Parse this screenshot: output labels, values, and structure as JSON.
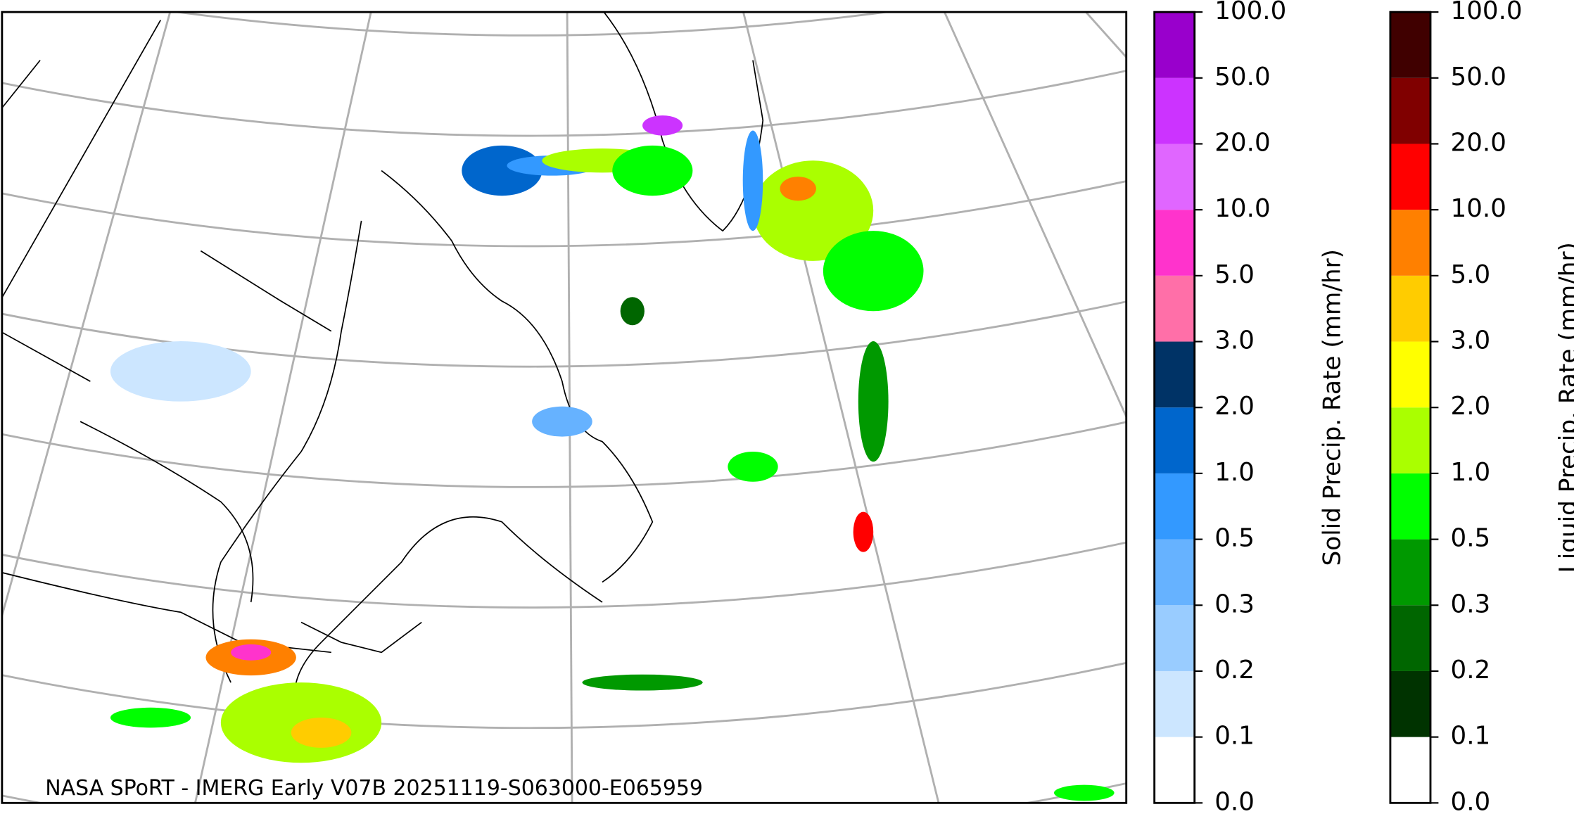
{
  "map": {
    "caption": "NASA SPoRT - IMERG Early V07B 20251119-S063000-E065959"
  },
  "colorbars": [
    {
      "label": "Solid Precip. Rate (mm/hr)",
      "ticks": [
        {
          "value": 0,
          "label": "0.0"
        },
        {
          "value": 0.1,
          "label": "0.1"
        },
        {
          "value": 0.2,
          "label": "0.2"
        },
        {
          "value": 0.3,
          "label": "0.3"
        },
        {
          "value": 0.5,
          "label": "0.5"
        },
        {
          "value": 1,
          "label": "1.0"
        },
        {
          "value": 2,
          "label": "2.0"
        },
        {
          "value": 3,
          "label": "3.0"
        },
        {
          "value": 5,
          "label": "5.0"
        },
        {
          "value": 10,
          "label": "10.0"
        },
        {
          "value": 20,
          "label": "20.0"
        },
        {
          "value": 50,
          "label": "50.0"
        },
        {
          "value": 100,
          "label": "100.0"
        }
      ],
      "colors": [
        "#ffffff",
        "#cce6ff",
        "#99ccff",
        "#66b2ff",
        "#3399ff",
        "#0066cc",
        "#003366",
        "#ff6fa8",
        "#ff33cc",
        "#e066ff",
        "#cc33ff",
        "#9900cc"
      ]
    },
    {
      "label": "Liquid Precip. Rate (mm/hr)",
      "ticks": [
        {
          "value": 0,
          "label": "0.0"
        },
        {
          "value": 0.1,
          "label": "0.1"
        },
        {
          "value": 0.2,
          "label": "0.2"
        },
        {
          "value": 0.3,
          "label": "0.3"
        },
        {
          "value": 0.5,
          "label": "0.5"
        },
        {
          "value": 1,
          "label": "1.0"
        },
        {
          "value": 2,
          "label": "2.0"
        },
        {
          "value": 3,
          "label": "3.0"
        },
        {
          "value": 5,
          "label": "5.0"
        },
        {
          "value": 10,
          "label": "10.0"
        },
        {
          "value": 20,
          "label": "20.0"
        },
        {
          "value": 50,
          "label": "50.0"
        },
        {
          "value": 100,
          "label": "100.0"
        }
      ],
      "colors": [
        "#ffffff",
        "#003300",
        "#006600",
        "#009900",
        "#00ff00",
        "#aaff00",
        "#ffff00",
        "#ffcc00",
        "#ff8000",
        "#ff0000",
        "#800000",
        "#400000"
      ]
    }
  ]
}
